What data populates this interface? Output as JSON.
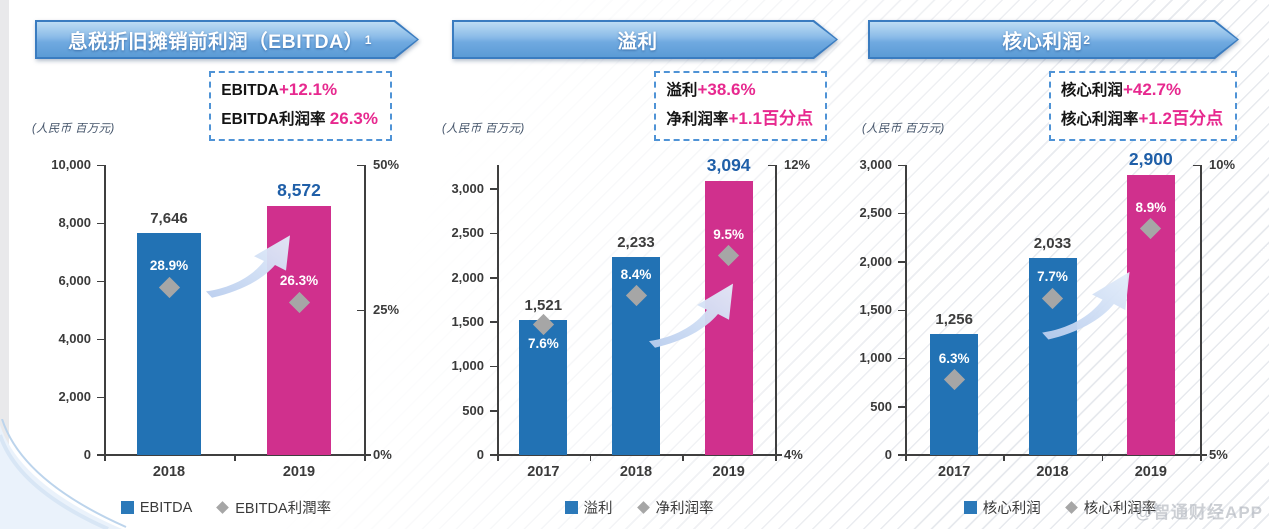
{
  "page": {
    "watermark": "@智通财经APP",
    "colors": {
      "bar_blue": "#2272b4",
      "bar_pink": "#d0308d",
      "final_label_blue": "#1f5fa8",
      "marker_gray": "#a6a6a6",
      "accent_pink": "#e7298f",
      "banner_blue": "#5b9bd5",
      "axis_dark": "#3f3f3f"
    }
  },
  "chart_data": [
    {
      "type": "bar",
      "title": "息税折旧摊销前利润（EBITDA）",
      "title_sup": "1",
      "units_label": "(人民币 百万元)",
      "callout": [
        {
          "label": "EBITDA",
          "value": "+12.1%"
        },
        {
          "label": "EBITDA利润率 ",
          "value": "26.3%"
        }
      ],
      "categories": [
        "2018",
        "2019"
      ],
      "series": [
        {
          "name": "EBITDA",
          "type": "bar",
          "values": [
            7646,
            8572
          ],
          "labels": [
            "7,646",
            "8,572"
          ]
        },
        {
          "name": "EBITDA利潤率",
          "type": "marker",
          "values": [
            28.9,
            26.3
          ],
          "labels": [
            "28.9%",
            "26.3%"
          ],
          "label_pos": [
            "above",
            "above"
          ]
        }
      ],
      "left_axis": {
        "top_value": 10000,
        "ticks": [
          {
            "label": "10,000",
            "value": 10000
          },
          {
            "label": "8,000",
            "value": 8000
          },
          {
            "label": "6,000",
            "value": 6000
          },
          {
            "label": "4,000",
            "value": 4000
          },
          {
            "label": "2,000",
            "value": 2000
          },
          {
            "label": "0",
            "value": 0
          }
        ]
      },
      "right_axis": {
        "min": 0,
        "max": 50,
        "ticks": [
          {
            "label": "50%",
            "value": 50
          },
          {
            "label": "25%",
            "value": 25
          },
          {
            "label": "0%",
            "value": 0
          }
        ]
      },
      "legend": [
        "EBITDA",
        "EBITDA利潤率"
      ]
    },
    {
      "type": "bar",
      "title": "溢利",
      "title_sup": "",
      "units_label": "(人民币 百万元)",
      "callout": [
        {
          "label": "溢利",
          "value": "+38.6%"
        },
        {
          "label": "净利润率",
          "value": "+1.1百分点"
        }
      ],
      "categories": [
        "2017",
        "2018",
        "2019"
      ],
      "series": [
        {
          "name": "溢利",
          "type": "bar",
          "values": [
            1521,
            2233,
            3094
          ],
          "labels": [
            "1,521",
            "2,233",
            "3,094"
          ]
        },
        {
          "name": "净利润率",
          "type": "marker",
          "values": [
            7.6,
            8.4,
            9.5
          ],
          "labels": [
            "7.6%",
            "8.4%",
            "9.5%"
          ],
          "label_pos": [
            "below",
            "above",
            "above"
          ]
        }
      ],
      "left_axis": {
        "top_value": 3270,
        "ticks": [
          {
            "label": "3,000",
            "value": 3000
          },
          {
            "label": "2,500",
            "value": 2500
          },
          {
            "label": "2,000",
            "value": 2000
          },
          {
            "label": "1,500",
            "value": 1500
          },
          {
            "label": "1,000",
            "value": 1000
          },
          {
            "label": "500",
            "value": 500
          },
          {
            "label": "0",
            "value": 0
          }
        ]
      },
      "right_axis": {
        "min": 4,
        "max": 12,
        "ticks": [
          {
            "label": "12%",
            "value": 12
          },
          {
            "label": "4%",
            "value": 4
          }
        ]
      },
      "legend": [
        "溢利",
        "净利润率"
      ]
    },
    {
      "type": "bar",
      "title": "核心利润",
      "title_sup": "2",
      "units_label": "(人民币 百万元)",
      "callout": [
        {
          "label": "核心利润",
          "value": "+42.7%"
        },
        {
          "label": "核心利润率",
          "value": "+1.2百分点"
        }
      ],
      "categories": [
        "2017",
        "2018",
        "2019"
      ],
      "series": [
        {
          "name": "核心利润",
          "type": "bar",
          "values": [
            1256,
            2033,
            2900
          ],
          "labels": [
            "1,256",
            "2,033",
            "2,900"
          ]
        },
        {
          "name": "核心利润率",
          "type": "marker",
          "values": [
            6.3,
            7.7,
            8.9
          ],
          "labels": [
            "6.3%",
            "7.7%",
            "8.9%"
          ],
          "label_pos": [
            "above",
            "above",
            "above"
          ]
        }
      ],
      "left_axis": {
        "top_value": 3000,
        "ticks": [
          {
            "label": "3,000",
            "value": 3000
          },
          {
            "label": "2,500",
            "value": 2500
          },
          {
            "label": "2,000",
            "value": 2000
          },
          {
            "label": "1,500",
            "value": 1500
          },
          {
            "label": "1,000",
            "value": 1000
          },
          {
            "label": "500",
            "value": 500
          },
          {
            "label": "0",
            "value": 0
          }
        ]
      },
      "right_axis": {
        "min": 5,
        "max": 10,
        "ticks": [
          {
            "label": "10%",
            "value": 10
          },
          {
            "label": "5%",
            "value": 5
          }
        ]
      },
      "legend": [
        "核心利润",
        "核心利润率"
      ]
    }
  ]
}
